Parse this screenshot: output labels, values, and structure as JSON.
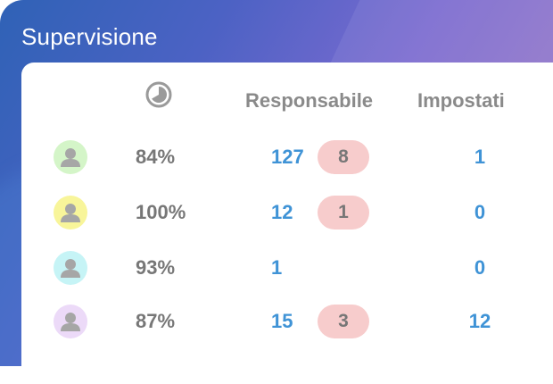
{
  "widget": {
    "title": "Supervisione",
    "columns": {
      "progress_icon": "pie-clock-icon",
      "responsabile": "Responsabile",
      "impostati": "Impostati"
    },
    "rows": [
      {
        "avatar_color": "#d4f5c8",
        "percent": "84%",
        "responsabile": "127",
        "badge": "8",
        "impostati": "1"
      },
      {
        "avatar_color": "#f8f59a",
        "percent": "100%",
        "responsabile": "12",
        "badge": "1",
        "impostati": "0"
      },
      {
        "avatar_color": "#c6f4f6",
        "percent": "93%",
        "responsabile": "1",
        "badge": "",
        "impostati": "0"
      },
      {
        "avatar_color": "#ecdaf8",
        "percent": "87%",
        "responsabile": "15",
        "badge": "3",
        "impostati": "12"
      }
    ],
    "colors": {
      "value_blue": "#3f93d6",
      "badge_bg": "#f7cccc",
      "text_gray": "#777777"
    }
  }
}
